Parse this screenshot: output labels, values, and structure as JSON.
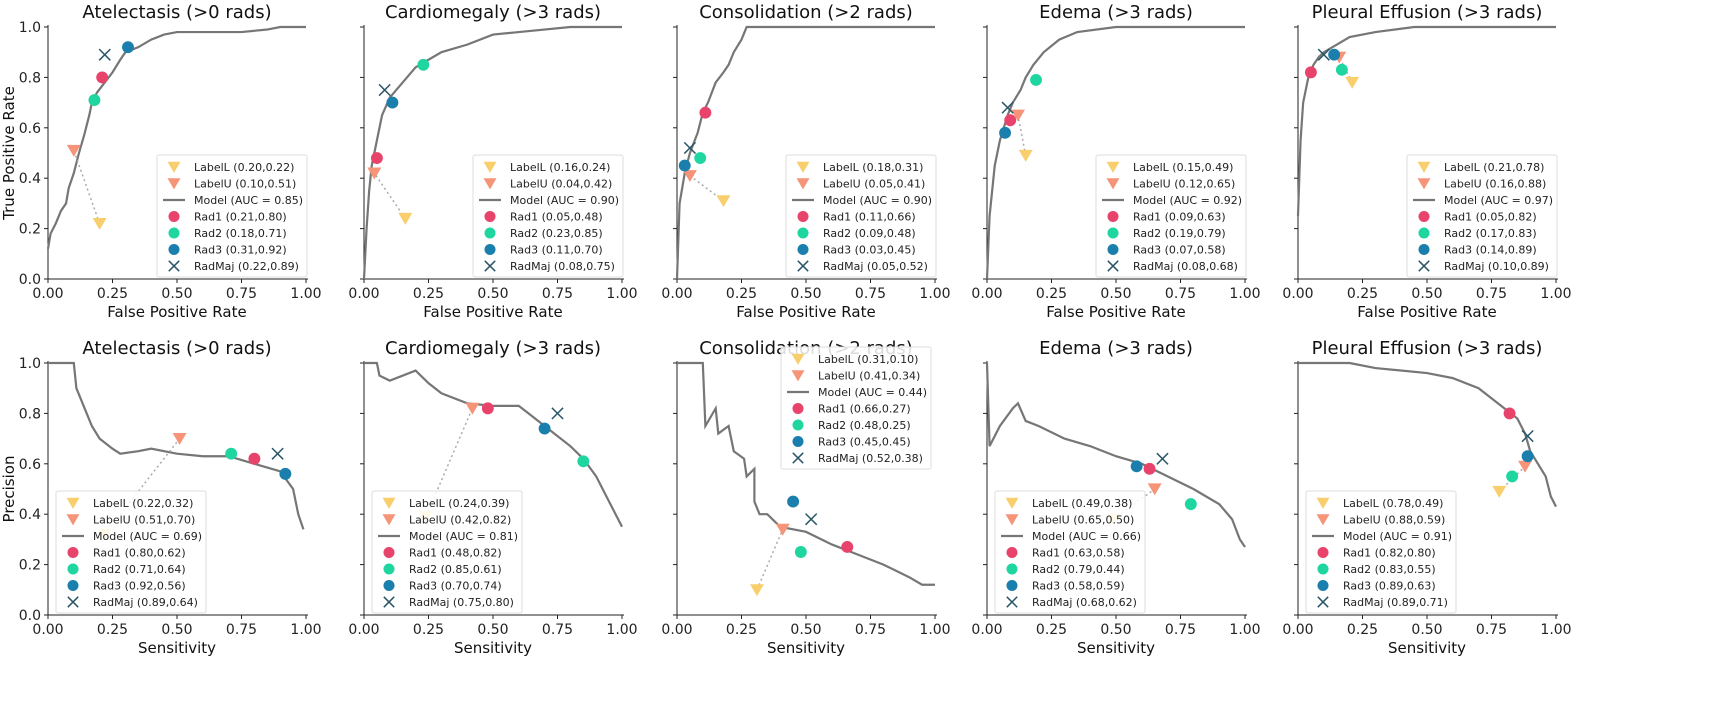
{
  "colors": {
    "LabelL": "#f9cf6e",
    "LabelU": "#f59479",
    "Model": "#767676",
    "Rad1": "#e8436a",
    "Rad2": "#1fd6a1",
    "Rad3": "#1a7fac",
    "RadMaj": "#2b5668"
  },
  "chart_data": [
    {
      "type": "line",
      "row": "roc",
      "title": "Atelectasis (>0 rads)",
      "xlabel": "False Positive Rate",
      "ylabel": "True Positive Rate",
      "xlim": [
        0,
        1
      ],
      "ylim": [
        0,
        1
      ],
      "xticks": [
        "0.00",
        "0.25",
        "0.50",
        "0.75",
        "1.00"
      ],
      "yticks": [
        "0.0",
        "0.2",
        "0.4",
        "0.6",
        "0.8",
        "1.0"
      ],
      "legend": "lower-right",
      "auc": "0.85",
      "curve": [
        [
          0,
          0.12
        ],
        [
          0.01,
          0.18
        ],
        [
          0.03,
          0.22
        ],
        [
          0.05,
          0.27
        ],
        [
          0.07,
          0.3
        ],
        [
          0.08,
          0.36
        ],
        [
          0.1,
          0.42
        ],
        [
          0.12,
          0.5
        ],
        [
          0.14,
          0.57
        ],
        [
          0.16,
          0.65
        ],
        [
          0.17,
          0.7
        ],
        [
          0.19,
          0.74
        ],
        [
          0.22,
          0.78
        ],
        [
          0.25,
          0.82
        ],
        [
          0.28,
          0.87
        ],
        [
          0.3,
          0.9
        ],
        [
          0.35,
          0.92
        ],
        [
          0.4,
          0.95
        ],
        [
          0.45,
          0.97
        ],
        [
          0.5,
          0.98
        ],
        [
          0.75,
          0.98
        ],
        [
          0.85,
          0.99
        ],
        [
          0.9,
          1
        ],
        [
          1,
          1
        ]
      ],
      "points": {
        "LabelL": [
          0.2,
          0.22
        ],
        "LabelU": [
          0.1,
          0.51
        ],
        "Rad1": [
          0.21,
          0.8
        ],
        "Rad2": [
          0.18,
          0.71
        ],
        "Rad3": [
          0.31,
          0.92
        ],
        "RadMaj": [
          0.22,
          0.89
        ]
      }
    },
    {
      "type": "line",
      "row": "roc",
      "title": "Cardiomegaly (>3 rads)",
      "xlabel": "False Positive Rate",
      "ylabel": "",
      "xlim": [
        0,
        1
      ],
      "ylim": [
        0,
        1
      ],
      "xticks": [
        "0.00",
        "0.25",
        "0.50",
        "0.75",
        "1.00"
      ],
      "yticks": [],
      "legend": "lower-right",
      "auc": "0.90",
      "curve": [
        [
          0,
          0
        ],
        [
          0.01,
          0.2
        ],
        [
          0.02,
          0.35
        ],
        [
          0.03,
          0.45
        ],
        [
          0.05,
          0.55
        ],
        [
          0.07,
          0.65
        ],
        [
          0.1,
          0.72
        ],
        [
          0.15,
          0.78
        ],
        [
          0.2,
          0.84
        ],
        [
          0.25,
          0.87
        ],
        [
          0.3,
          0.9
        ],
        [
          0.4,
          0.93
        ],
        [
          0.5,
          0.97
        ],
        [
          0.6,
          0.98
        ],
        [
          0.8,
          1
        ],
        [
          1,
          1
        ]
      ],
      "points": {
        "LabelL": [
          0.16,
          0.24
        ],
        "LabelU": [
          0.04,
          0.42
        ],
        "Rad1": [
          0.05,
          0.48
        ],
        "Rad2": [
          0.23,
          0.85
        ],
        "Rad3": [
          0.11,
          0.7
        ],
        "RadMaj": [
          0.08,
          0.75
        ]
      }
    },
    {
      "type": "line",
      "row": "roc",
      "title": "Consolidation (>2 rads)",
      "xlabel": "False Positive Rate",
      "ylabel": "",
      "xlim": [
        0,
        1
      ],
      "ylim": [
        0,
        1
      ],
      "xticks": [
        "0.00",
        "0.25",
        "0.50",
        "0.75",
        "1.00"
      ],
      "yticks": [],
      "legend": "lower-right",
      "auc": "0.90",
      "curve": [
        [
          0,
          0
        ],
        [
          0.01,
          0.3
        ],
        [
          0.03,
          0.42
        ],
        [
          0.05,
          0.5
        ],
        [
          0.08,
          0.58
        ],
        [
          0.1,
          0.66
        ],
        [
          0.12,
          0.7
        ],
        [
          0.15,
          0.78
        ],
        [
          0.18,
          0.82
        ],
        [
          0.2,
          0.85
        ],
        [
          0.22,
          0.9
        ],
        [
          0.25,
          0.95
        ],
        [
          0.27,
          1
        ],
        [
          1,
          1
        ]
      ],
      "points": {
        "LabelL": [
          0.18,
          0.31
        ],
        "LabelU": [
          0.05,
          0.41
        ],
        "Rad1": [
          0.11,
          0.66
        ],
        "Rad2": [
          0.09,
          0.48
        ],
        "Rad3": [
          0.03,
          0.45
        ],
        "RadMaj": [
          0.05,
          0.52
        ]
      }
    },
    {
      "type": "line",
      "row": "roc",
      "title": "Edema (>3 rads)",
      "xlabel": "False Positive Rate",
      "ylabel": "",
      "xlim": [
        0,
        1
      ],
      "ylim": [
        0,
        1
      ],
      "xticks": [
        "0.00",
        "0.25",
        "0.50",
        "0.75",
        "1.00"
      ],
      "yticks": [],
      "legend": "lower-right",
      "auc": "0.92",
      "curve": [
        [
          0,
          0
        ],
        [
          0.01,
          0.25
        ],
        [
          0.03,
          0.45
        ],
        [
          0.05,
          0.55
        ],
        [
          0.08,
          0.65
        ],
        [
          0.1,
          0.7
        ],
        [
          0.13,
          0.75
        ],
        [
          0.15,
          0.8
        ],
        [
          0.18,
          0.85
        ],
        [
          0.22,
          0.9
        ],
        [
          0.28,
          0.95
        ],
        [
          0.35,
          0.98
        ],
        [
          0.5,
          1
        ],
        [
          1,
          1
        ]
      ],
      "points": {
        "LabelL": [
          0.15,
          0.49
        ],
        "LabelU": [
          0.12,
          0.65
        ],
        "Rad1": [
          0.09,
          0.63
        ],
        "Rad2": [
          0.19,
          0.79
        ],
        "Rad3": [
          0.07,
          0.58
        ],
        "RadMaj": [
          0.08,
          0.68
        ]
      }
    },
    {
      "type": "line",
      "row": "roc",
      "title": "Pleural Effusion (>3 rads)",
      "xlabel": "False Positive Rate",
      "ylabel": "",
      "xlim": [
        0,
        1
      ],
      "ylim": [
        0,
        1
      ],
      "xticks": [
        "0.00",
        "0.25",
        "0.50",
        "0.75",
        "1.00"
      ],
      "yticks": [],
      "legend": "lower-right",
      "auc": "0.97",
      "curve": [
        [
          0,
          0.25
        ],
        [
          0.01,
          0.55
        ],
        [
          0.02,
          0.7
        ],
        [
          0.04,
          0.8
        ],
        [
          0.06,
          0.85
        ],
        [
          0.08,
          0.88
        ],
        [
          0.1,
          0.9
        ],
        [
          0.15,
          0.93
        ],
        [
          0.2,
          0.96
        ],
        [
          0.3,
          0.98
        ],
        [
          0.45,
          1
        ],
        [
          1,
          1
        ]
      ],
      "points": {
        "LabelL": [
          0.21,
          0.78
        ],
        "LabelU": [
          0.16,
          0.88
        ],
        "Rad1": [
          0.05,
          0.82
        ],
        "Rad2": [
          0.17,
          0.83
        ],
        "Rad3": [
          0.14,
          0.89
        ],
        "RadMaj": [
          0.1,
          0.89
        ]
      }
    },
    {
      "type": "line",
      "row": "pr",
      "title": "Atelectasis (>0 rads)",
      "xlabel": "Sensitivity",
      "ylabel": "Precision",
      "xlim": [
        0,
        1
      ],
      "ylim": [
        0,
        1
      ],
      "xticks": [
        "0.00",
        "0.25",
        "0.50",
        "0.75",
        "1.00"
      ],
      "yticks": [
        "0.0",
        "0.2",
        "0.4",
        "0.6",
        "0.8",
        "1.0"
      ],
      "legend": "lower-left",
      "auc": "0.69",
      "curve": [
        [
          0,
          1
        ],
        [
          0.1,
          1
        ],
        [
          0.11,
          0.9
        ],
        [
          0.13,
          0.85
        ],
        [
          0.15,
          0.8
        ],
        [
          0.17,
          0.75
        ],
        [
          0.2,
          0.7
        ],
        [
          0.25,
          0.66
        ],
        [
          0.28,
          0.64
        ],
        [
          0.35,
          0.65
        ],
        [
          0.4,
          0.66
        ],
        [
          0.5,
          0.64
        ],
        [
          0.6,
          0.63
        ],
        [
          0.7,
          0.63
        ],
        [
          0.8,
          0.6
        ],
        [
          0.9,
          0.57
        ],
        [
          0.95,
          0.5
        ],
        [
          0.97,
          0.4
        ],
        [
          0.99,
          0.34
        ]
      ],
      "points": {
        "LabelL": [
          0.22,
          0.32
        ],
        "LabelU": [
          0.51,
          0.7
        ],
        "Rad1": [
          0.8,
          0.62
        ],
        "Rad2": [
          0.71,
          0.64
        ],
        "Rad3": [
          0.92,
          0.56
        ],
        "RadMaj": [
          0.89,
          0.64
        ]
      }
    },
    {
      "type": "line",
      "row": "pr",
      "title": "Cardiomegaly (>3 rads)",
      "xlabel": "Sensitivity",
      "ylabel": "",
      "xlim": [
        0,
        1
      ],
      "ylim": [
        0,
        1
      ],
      "xticks": [
        "0.00",
        "0.25",
        "0.50",
        "0.75",
        "1.00"
      ],
      "yticks": [],
      "legend": "lower-left",
      "auc": "0.81",
      "curve": [
        [
          0,
          1
        ],
        [
          0.05,
          1
        ],
        [
          0.06,
          0.95
        ],
        [
          0.1,
          0.93
        ],
        [
          0.2,
          0.97
        ],
        [
          0.25,
          0.92
        ],
        [
          0.3,
          0.88
        ],
        [
          0.4,
          0.84
        ],
        [
          0.5,
          0.83
        ],
        [
          0.6,
          0.83
        ],
        [
          0.65,
          0.79
        ],
        [
          0.7,
          0.75
        ],
        [
          0.8,
          0.67
        ],
        [
          0.85,
          0.62
        ],
        [
          0.9,
          0.55
        ],
        [
          0.95,
          0.45
        ],
        [
          1,
          0.35
        ]
      ],
      "points": {
        "LabelL": [
          0.24,
          0.39
        ],
        "LabelU": [
          0.42,
          0.82
        ],
        "Rad1": [
          0.48,
          0.82
        ],
        "Rad2": [
          0.85,
          0.61
        ],
        "Rad3": [
          0.7,
          0.74
        ],
        "RadMaj": [
          0.75,
          0.8
        ]
      }
    },
    {
      "type": "line",
      "row": "pr",
      "title": "Consolidation (>2 rads)",
      "xlabel": "Sensitivity",
      "ylabel": "",
      "xlim": [
        0,
        1
      ],
      "ylim": [
        0,
        1
      ],
      "xticks": [
        "0.00",
        "0.25",
        "0.50",
        "0.75",
        "1.00"
      ],
      "yticks": [],
      "legend": "upper-right",
      "auc": "0.44",
      "curve": [
        [
          0,
          1
        ],
        [
          0.1,
          1
        ],
        [
          0.11,
          0.75
        ],
        [
          0.15,
          0.82
        ],
        [
          0.16,
          0.72
        ],
        [
          0.2,
          0.75
        ],
        [
          0.22,
          0.65
        ],
        [
          0.26,
          0.62
        ],
        [
          0.27,
          0.55
        ],
        [
          0.3,
          0.58
        ],
        [
          0.3,
          0.45
        ],
        [
          0.32,
          0.4
        ],
        [
          0.35,
          0.4
        ],
        [
          0.4,
          0.35
        ],
        [
          0.5,
          0.33
        ],
        [
          0.6,
          0.28
        ],
        [
          0.7,
          0.24
        ],
        [
          0.8,
          0.2
        ],
        [
          0.9,
          0.15
        ],
        [
          0.95,
          0.12
        ],
        [
          1,
          0.12
        ]
      ],
      "points": {
        "LabelL": [
          0.31,
          0.1
        ],
        "LabelU": [
          0.41,
          0.34
        ],
        "Rad1": [
          0.66,
          0.27
        ],
        "Rad2": [
          0.48,
          0.25
        ],
        "Rad3": [
          0.45,
          0.45
        ],
        "RadMaj": [
          0.52,
          0.38
        ]
      }
    },
    {
      "type": "line",
      "row": "pr",
      "title": "Edema (>3 rads)",
      "xlabel": "Sensitivity",
      "ylabel": "",
      "xlim": [
        0,
        1
      ],
      "ylim": [
        0,
        1
      ],
      "xticks": [
        "0.00",
        "0.25",
        "0.50",
        "0.75",
        "1.00"
      ],
      "yticks": [],
      "legend": "lower-left",
      "auc": "0.66",
      "curve": [
        [
          0,
          1
        ],
        [
          0.01,
          0.67
        ],
        [
          0.05,
          0.75
        ],
        [
          0.1,
          0.82
        ],
        [
          0.12,
          0.84
        ],
        [
          0.15,
          0.77
        ],
        [
          0.2,
          0.75
        ],
        [
          0.3,
          0.7
        ],
        [
          0.4,
          0.67
        ],
        [
          0.5,
          0.63
        ],
        [
          0.6,
          0.6
        ],
        [
          0.7,
          0.55
        ],
        [
          0.8,
          0.5
        ],
        [
          0.9,
          0.44
        ],
        [
          0.95,
          0.38
        ],
        [
          0.98,
          0.3
        ],
        [
          1,
          0.27
        ]
      ],
      "points": {
        "LabelL": [
          0.49,
          0.38
        ],
        "LabelU": [
          0.65,
          0.5
        ],
        "Rad1": [
          0.63,
          0.58
        ],
        "Rad2": [
          0.79,
          0.44
        ],
        "Rad3": [
          0.58,
          0.59
        ],
        "RadMaj": [
          0.68,
          0.62
        ]
      }
    },
    {
      "type": "line",
      "row": "pr",
      "title": "Pleural Effusion (>3 rads)",
      "xlabel": "Sensitivity",
      "ylabel": "",
      "xlim": [
        0,
        1
      ],
      "ylim": [
        0,
        1
      ],
      "xticks": [
        "0.00",
        "0.25",
        "0.50",
        "0.75",
        "1.00"
      ],
      "yticks": [],
      "legend": "lower-left",
      "auc": "0.91",
      "curve": [
        [
          0,
          1
        ],
        [
          0.2,
          1
        ],
        [
          0.3,
          0.98
        ],
        [
          0.5,
          0.96
        ],
        [
          0.6,
          0.94
        ],
        [
          0.7,
          0.9
        ],
        [
          0.8,
          0.82
        ],
        [
          0.85,
          0.78
        ],
        [
          0.88,
          0.72
        ],
        [
          0.9,
          0.65
        ],
        [
          0.93,
          0.6
        ],
        [
          0.96,
          0.55
        ],
        [
          0.98,
          0.47
        ],
        [
          1,
          0.43
        ]
      ],
      "points": {
        "LabelL": [
          0.78,
          0.49
        ],
        "LabelU": [
          0.88,
          0.59
        ],
        "Rad1": [
          0.82,
          0.8
        ],
        "Rad2": [
          0.83,
          0.55
        ],
        "Rad3": [
          0.89,
          0.63
        ],
        "RadMaj": [
          0.89,
          0.71
        ]
      }
    }
  ]
}
